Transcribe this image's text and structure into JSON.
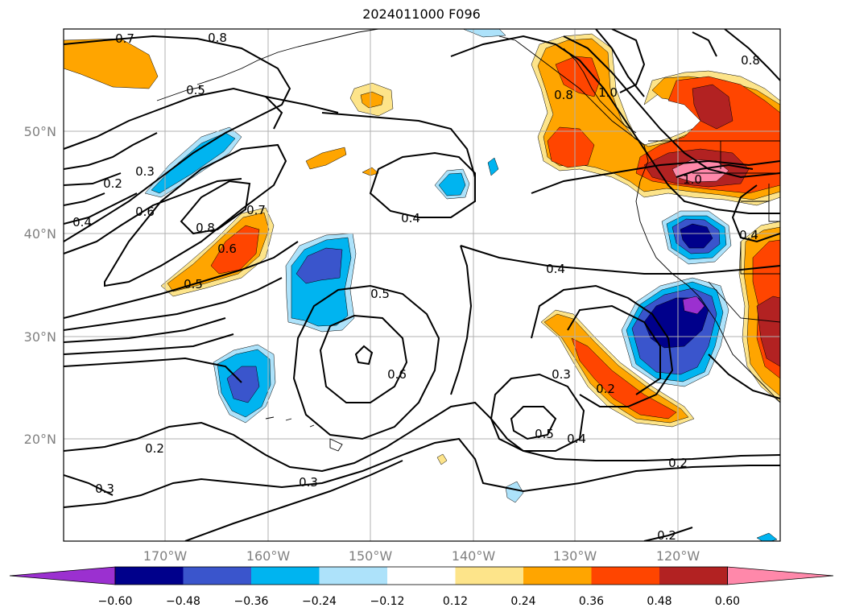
{
  "title": "2024011000 F096",
  "lat_labels": [
    "50°N",
    "40°N",
    "30°N",
    "20°N"
  ],
  "lon_labels": [
    "170°W",
    "160°W",
    "150°W",
    "140°W",
    "130°W",
    "120°W"
  ],
  "contour_labels": [
    "0.7",
    "0.8",
    "0.5",
    "0.3",
    "0.2",
    "0.6",
    "0.4",
    "0.8",
    "0.7",
    "0.6",
    "0.5",
    "0.4",
    "0.5",
    "0.6",
    "0.4",
    "0.3",
    "0.2",
    "0.5",
    "0.4",
    "0.2",
    "0.3",
    "0.2",
    "0.3",
    "0.8",
    "1.0",
    "0.8",
    "1.0",
    "0.4",
    "0.2"
  ],
  "colorbar": {
    "ticks": [
      "−0.60",
      "−0.48",
      "−0.36",
      "−0.24",
      "−0.12",
      "0.12",
      "0.24",
      "0.36",
      "0.48",
      "0.60"
    ],
    "colors": [
      "#9b30d0",
      "#00008b",
      "#3a55cc",
      "#00b4f0",
      "#ade2fa",
      "#ffffff",
      "#fde48a",
      "#ffa500",
      "#ff4500",
      "#b22222",
      "#ff88aa"
    ]
  }
}
